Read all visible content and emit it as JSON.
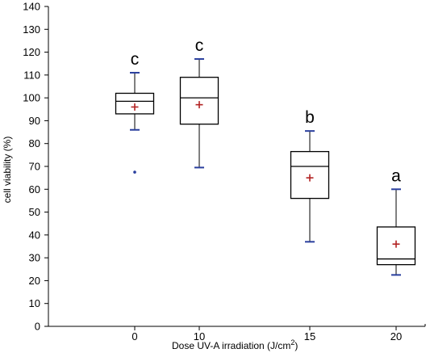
{
  "chart_data": {
    "type": "box",
    "xlabel": "Dose UV-A irradiation (J/cm",
    "xlabel_sup": "2",
    "xlabel_end": ")",
    "ylabel": "cell viability (%)",
    "ylim": [
      0,
      140
    ],
    "ytick_step": 10,
    "categories": [
      "0",
      "10",
      "15",
      "20"
    ],
    "boxes": [
      {
        "category": "0",
        "whisker_low": 86,
        "q1": 93,
        "median": 98.5,
        "q3": 102,
        "whisker_high": 111,
        "mean": 96,
        "outliers": [
          67.5
        ],
        "letter": "c"
      },
      {
        "category": "10",
        "whisker_low": 69.5,
        "q1": 88.5,
        "median": 100,
        "q3": 109,
        "whisker_high": 117,
        "mean": 97,
        "outliers": [],
        "letter": "c"
      },
      {
        "category": "15",
        "whisker_low": 37,
        "q1": 56,
        "median": 70,
        "q3": 76.5,
        "whisker_high": 85.5,
        "mean": 65,
        "outliers": [],
        "letter": "b"
      },
      {
        "category": "20",
        "whisker_low": 22.5,
        "q1": 27,
        "median": 29.5,
        "q3": 43.5,
        "whisker_high": 60,
        "mean": 36,
        "outliers": [],
        "letter": "a"
      }
    ],
    "colors": {
      "box": "#000000",
      "whisker_cap": "#2a3f9e",
      "mean_marker": "#b22222",
      "outlier": "#2a3f9e"
    }
  }
}
